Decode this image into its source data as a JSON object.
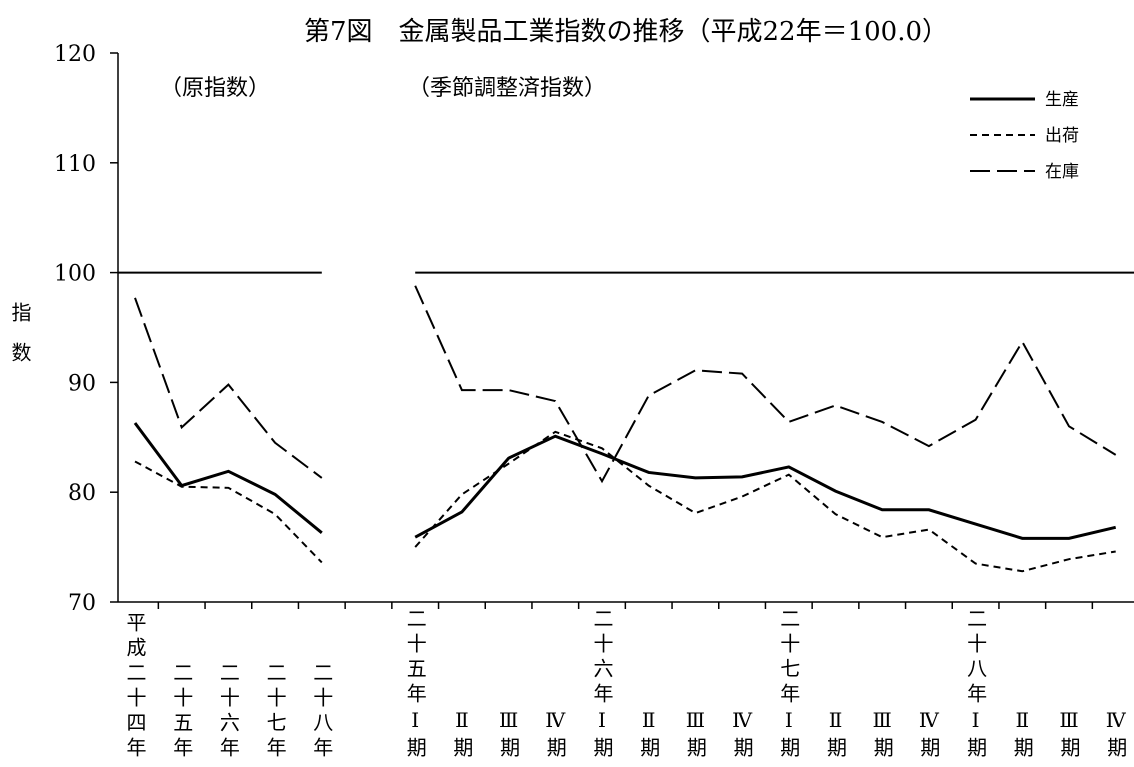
{
  "chart_data": {
    "type": "line",
    "title": "第7図　金属製品工業指数の推移（平成22年＝100.0）",
    "y_label": "指数",
    "annotations": [
      "（原指数）",
      "（季節調整済指数）"
    ],
    "categories": [
      "平成二十四年",
      "二十五年",
      "二十六年",
      "二十七年",
      "二十八年",
      null,
      "二十五年Ⅰ期",
      "Ⅱ期",
      "Ⅲ期",
      "Ⅳ期",
      "二十六年Ⅰ期",
      "Ⅱ期",
      "Ⅲ期",
      "Ⅳ期",
      "二十七年Ⅰ期",
      "Ⅱ期",
      "Ⅲ期",
      "Ⅳ期",
      "二十八年Ⅰ期",
      "Ⅱ期",
      "Ⅲ期",
      "Ⅳ期"
    ],
    "series": [
      {
        "name": "生産",
        "color": "#000000",
        "line_style": "solid",
        "values": [
          86.3,
          80.6,
          81.9,
          79.8,
          76.3,
          null,
          75.9,
          78.2,
          83.1,
          85.1,
          83.5,
          81.8,
          81.3,
          81.4,
          82.3,
          80.1,
          78.4,
          78.4,
          77.1,
          75.8,
          75.8,
          76.8
        ]
      },
      {
        "name": "出荷",
        "color": "#000000",
        "line_style": "short-dash",
        "values": [
          82.8,
          80.5,
          80.4,
          78.0,
          73.6,
          null,
          75.0,
          79.8,
          82.6,
          85.5,
          84.0,
          80.6,
          78.1,
          79.6,
          81.6,
          78.0,
          75.9,
          76.6,
          73.5,
          72.8,
          73.9,
          74.6
        ]
      },
      {
        "name": "在庫",
        "color": "#000000",
        "line_style": "long-dash",
        "values": [
          97.7,
          85.9,
          89.8,
          84.5,
          81.3,
          null,
          98.8,
          89.3,
          89.3,
          88.3,
          81.0,
          88.8,
          91.1,
          90.8,
          86.4,
          87.9,
          86.4,
          84.2,
          86.6,
          93.7,
          86.0,
          83.4
        ]
      }
    ],
    "reference_line": 100,
    "ylim": [
      70,
      120
    ],
    "yticks": [
      70,
      80,
      90,
      100,
      110,
      120
    ],
    "grid": false,
    "legend": "upper-right"
  }
}
